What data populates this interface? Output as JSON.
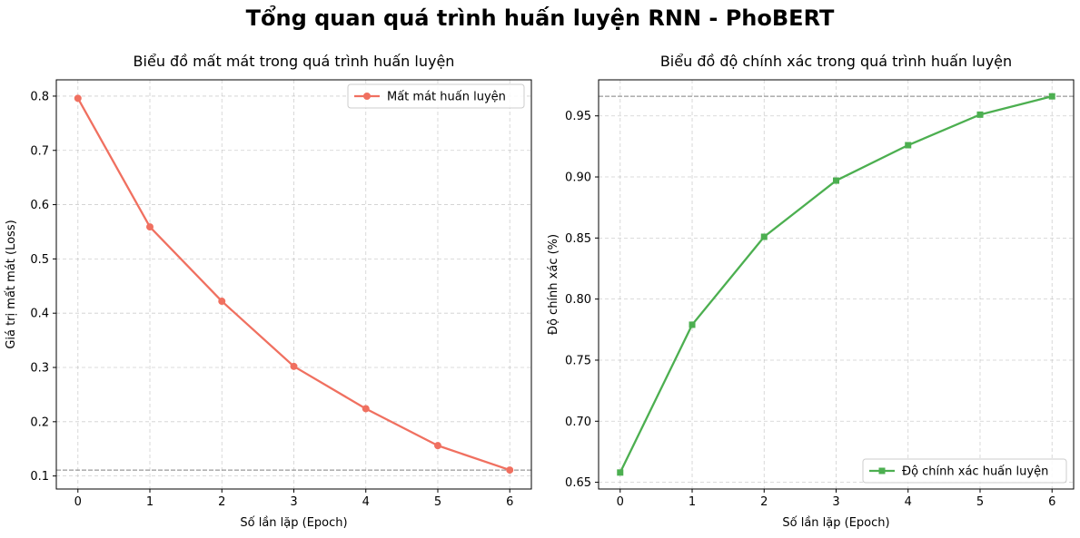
{
  "figure": {
    "suptitle": "Tổng quan quá trình huấn luyện RNN - PhoBERT"
  },
  "chart_data": [
    {
      "type": "line",
      "title": "Biểu đồ mất mát trong quá trình huấn luyện",
      "xlabel": "Số lần lặp (Epoch)",
      "ylabel": "Giá trị mất mát (Loss)",
      "x": [
        0,
        1,
        2,
        3,
        4,
        5,
        6
      ],
      "xlim": [
        -0.3,
        6.3
      ],
      "ylim": [
        0.076,
        0.83
      ],
      "xticks": [
        0,
        1,
        2,
        3,
        4,
        5,
        6
      ],
      "yticks": [
        0.1,
        0.2,
        0.3,
        0.4,
        0.5,
        0.6,
        0.7,
        0.8
      ],
      "ytick_labels": [
        "0.1",
        "0.2",
        "0.3",
        "0.4",
        "0.5",
        "0.6",
        "0.7",
        "0.8"
      ],
      "grid": true,
      "legend_position": "top-right",
      "reference_line": 0.111,
      "series": [
        {
          "name": "Mất mát huấn luyện",
          "color": "#f07060",
          "marker": "circle",
          "values": [
            0.796,
            0.559,
            0.422,
            0.302,
            0.224,
            0.156,
            0.111
          ]
        }
      ]
    },
    {
      "type": "line",
      "title": "Biểu đồ độ chính xác trong quá trình huấn luyện",
      "xlabel": "Số lần lặp (Epoch)",
      "ylabel": "Độ chính xác (%)",
      "x": [
        0,
        1,
        2,
        3,
        4,
        5,
        6
      ],
      "xlim": [
        -0.3,
        6.3
      ],
      "ylim": [
        0.6445,
        0.9795
      ],
      "xticks": [
        0,
        1,
        2,
        3,
        4,
        5,
        6
      ],
      "yticks": [
        0.65,
        0.7,
        0.75,
        0.8,
        0.85,
        0.9,
        0.95
      ],
      "ytick_labels": [
        "0.65",
        "0.70",
        "0.75",
        "0.80",
        "0.85",
        "0.90",
        "0.95"
      ],
      "grid": true,
      "legend_position": "bottom-right",
      "reference_line": 0.966,
      "series": [
        {
          "name": "Độ chính xác huấn luyện",
          "color": "#4caf50",
          "marker": "square",
          "values": [
            0.658,
            0.779,
            0.851,
            0.897,
            0.926,
            0.951,
            0.966
          ]
        }
      ]
    }
  ]
}
